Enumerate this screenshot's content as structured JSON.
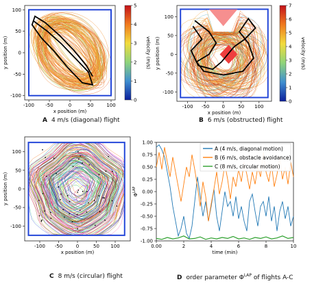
{
  "chart_data": [
    {
      "id": "A",
      "type": "scatter",
      "xlabel": "x position (m)",
      "ylabel": "y position (m)",
      "xlim": [
        -110,
        110
      ],
      "ylim": [
        -110,
        110
      ],
      "xticks": [
        -100,
        -50,
        0,
        50,
        100
      ],
      "yticks": [
        -100,
        -50,
        0,
        50,
        100
      ],
      "colorbar": {
        "label": "velocity (m/s)",
        "min": 0,
        "max": 5,
        "ticks": [
          0,
          1,
          2,
          3,
          4,
          5
        ]
      },
      "boundary": {
        "x": [
          -100,
          100
        ],
        "y": [
          -100,
          100
        ]
      },
      "highlight_path": [
        [
          -90,
          75
        ],
        [
          -55,
          50
        ],
        [
          -20,
          20
        ],
        [
          15,
          -15
        ],
        [
          45,
          -45
        ],
        [
          55,
          -75
        ],
        [
          30,
          -70
        ],
        [
          -5,
          -35
        ],
        [
          -40,
          5
        ],
        [
          -70,
          35
        ],
        [
          -92,
          65
        ],
        [
          -85,
          85
        ],
        [
          -60,
          70
        ],
        [
          -25,
          40
        ],
        [
          10,
          5
        ],
        [
          40,
          -30
        ],
        [
          55,
          -55
        ]
      ],
      "caption_letter": "A",
      "caption_text": "4 m/s (diagonal) flight"
    },
    {
      "id": "B",
      "type": "scatter",
      "xlabel": "x position (m)",
      "ylabel": "y position (m)",
      "xlim": [
        -130,
        135
      ],
      "ylim": [
        -125,
        130
      ],
      "xticks": [
        -100,
        -50,
        0,
        50,
        100
      ],
      "yticks": [
        -100,
        -50,
        0,
        50,
        100
      ],
      "colorbar": {
        "label": "velocity (m/s)",
        "min": 0,
        "max": 7,
        "ticks": [
          0,
          1,
          2,
          3,
          4,
          5,
          6,
          7
        ]
      },
      "boundary": {
        "x": [
          -120,
          125
        ],
        "y": [
          -115,
          120
        ]
      },
      "obstacles": [
        {
          "shape": "triangle",
          "points": [
            [
              -40,
              120
            ],
            [
              40,
              120
            ],
            [
              0,
              75
            ]
          ]
        },
        {
          "shape": "diamond",
          "points": [
            [
              15,
              25
            ],
            [
              40,
              0
            ],
            [
              15,
              -25
            ],
            [
              -10,
              0
            ]
          ]
        }
      ],
      "highlight_path": [
        [
          -80,
          90
        ],
        [
          -40,
          60
        ],
        [
          -20,
          30
        ],
        [
          -40,
          0
        ],
        [
          -75,
          -20
        ],
        [
          -55,
          -45
        ],
        [
          0,
          -55
        ],
        [
          55,
          -45
        ],
        [
          85,
          -10
        ],
        [
          70,
          30
        ],
        [
          45,
          60
        ],
        [
          70,
          95
        ],
        [
          90,
          70
        ],
        [
          60,
          40
        ],
        [
          30,
          20
        ],
        [
          -5,
          -20
        ],
        [
          -30,
          -40
        ],
        [
          -70,
          -30
        ],
        [
          -90,
          10
        ],
        [
          -60,
          40
        ],
        [
          -85,
          75
        ]
      ],
      "caption_letter": "B",
      "caption_text": "6 m/s (obstructed) flight"
    },
    {
      "id": "C",
      "type": "scatter",
      "xlabel": "x position (m)",
      "ylabel": "y position (m)",
      "xlim": [
        -140,
        140
      ],
      "ylim": [
        -140,
        140
      ],
      "xticks": [
        -100,
        -50,
        0,
        50,
        100
      ],
      "yticks": [
        -100,
        -50,
        0,
        50,
        100
      ],
      "boundary": {
        "x": [
          -130,
          125
        ],
        "y": [
          -125,
          125
        ]
      },
      "caption_letter": "C",
      "caption_text": "8 m/s (circular) flight"
    },
    {
      "id": "D",
      "type": "line",
      "xlabel": "time (min)",
      "ylabel": "Φ",
      "ylabel_sup": "LAP",
      "xlim": [
        0,
        10
      ],
      "ylim": [
        -1,
        1
      ],
      "xticks": [
        0,
        2,
        4,
        6,
        8,
        10
      ],
      "yticks": [
        -1.0,
        -0.75,
        -0.5,
        -0.25,
        0.0,
        0.25,
        0.5,
        0.75,
        1.0
      ],
      "legend": "top-right",
      "series": [
        {
          "name": "A (4 m/s, diagonal motion)",
          "color": "#1f77b4",
          "x": [
            0,
            0.2,
            0.4,
            0.6,
            0.8,
            1.0,
            1.2,
            1.4,
            1.6,
            1.8,
            2.0,
            2.2,
            2.4,
            2.6,
            2.8,
            3.0,
            3.2,
            3.4,
            3.6,
            3.8,
            4.0,
            4.2,
            4.4,
            4.6,
            4.8,
            5.0,
            5.2,
            5.4,
            5.6,
            5.8,
            6.0,
            6.2,
            6.4,
            6.6,
            6.8,
            7.0,
            7.2,
            7.4,
            7.6,
            7.8,
            8.0,
            8.2,
            8.4,
            8.6,
            8.8,
            9.0,
            9.2,
            9.4,
            9.6,
            9.8,
            10.0
          ],
          "y": [
            0.9,
            0.95,
            0.85,
            0.7,
            0.4,
            0.1,
            -0.3,
            -0.6,
            -0.9,
            -0.75,
            -0.5,
            -0.85,
            -0.95,
            -0.7,
            -0.2,
            0.3,
            -0.1,
            -0.5,
            -0.2,
            -0.6,
            -0.3,
            0.05,
            -0.5,
            -0.8,
            -0.4,
            0.0,
            -0.3,
            -0.2,
            -0.5,
            -0.1,
            -0.55,
            -0.3,
            -0.6,
            -0.8,
            -0.2,
            -0.05,
            -0.4,
            -0.7,
            -0.3,
            -0.2,
            -0.5,
            -0.1,
            -0.6,
            -0.3,
            -0.8,
            -0.4,
            -0.2,
            -0.55,
            -0.3,
            -0.7,
            -0.5
          ]
        },
        {
          "name": "B (6 m/s, obstacle avoidance)",
          "color": "#ff7f0e",
          "x": [
            0,
            0.2,
            0.4,
            0.6,
            0.8,
            1.0,
            1.2,
            1.4,
            1.6,
            1.8,
            2.0,
            2.2,
            2.4,
            2.6,
            2.8,
            3.0,
            3.2,
            3.4,
            3.6,
            3.8,
            4.0,
            4.2,
            4.4,
            4.6,
            4.8,
            5.0,
            5.2,
            5.4,
            5.6,
            5.8,
            6.0,
            6.2,
            6.4,
            6.6,
            6.8,
            7.0,
            7.2,
            7.4,
            7.6,
            7.8,
            8.0,
            8.2,
            8.4,
            8.6,
            8.8,
            9.0,
            9.2,
            9.4,
            9.6,
            9.8,
            10.0
          ],
          "y": [
            0.5,
            0.8,
            0.45,
            0.9,
            0.6,
            0.3,
            0.7,
            0.4,
            0.1,
            -0.2,
            0.15,
            0.5,
            0.3,
            0.75,
            0.45,
            0.1,
            -0.3,
            0.2,
            -0.1,
            -0.6,
            -0.25,
            0.05,
            0.4,
            -0.05,
            0.2,
            0.55,
            0.25,
            -0.15,
            0.3,
            0.1,
            0.45,
            0.2,
            0.6,
            0.35,
            0.05,
            0.4,
            0.15,
            0.5,
            0.3,
            0.8,
            0.4,
            0.2,
            0.55,
            0.1,
            0.35,
            0.7,
            0.25,
            0.5,
            0.15,
            0.6,
            0.3
          ]
        },
        {
          "name": "C (8 m/s, circular motion)",
          "color": "#2ca02c",
          "x": [
            0,
            0.4,
            0.8,
            1.2,
            1.6,
            2.0,
            2.4,
            2.8,
            3.2,
            3.6,
            4.0,
            4.4,
            4.8,
            5.2,
            5.6,
            6.0,
            6.4,
            6.8,
            7.2,
            7.6,
            8.0,
            8.4,
            8.8,
            9.2,
            9.6,
            10.0
          ],
          "y": [
            -0.95,
            -0.97,
            -0.93,
            -0.96,
            -0.94,
            -0.9,
            -0.96,
            -0.95,
            -0.92,
            -0.97,
            -0.94,
            -0.96,
            -0.93,
            -0.95,
            -0.91,
            -0.96,
            -0.94,
            -0.97,
            -0.93,
            -0.95,
            -0.92,
            -0.96,
            -0.94,
            -0.9,
            -0.95,
            -0.93
          ]
        }
      ],
      "caption_letter": "D",
      "caption_text_before": "order parameter Φ",
      "caption_sup": "LAP",
      "caption_text_after": " of flights A-C"
    }
  ]
}
